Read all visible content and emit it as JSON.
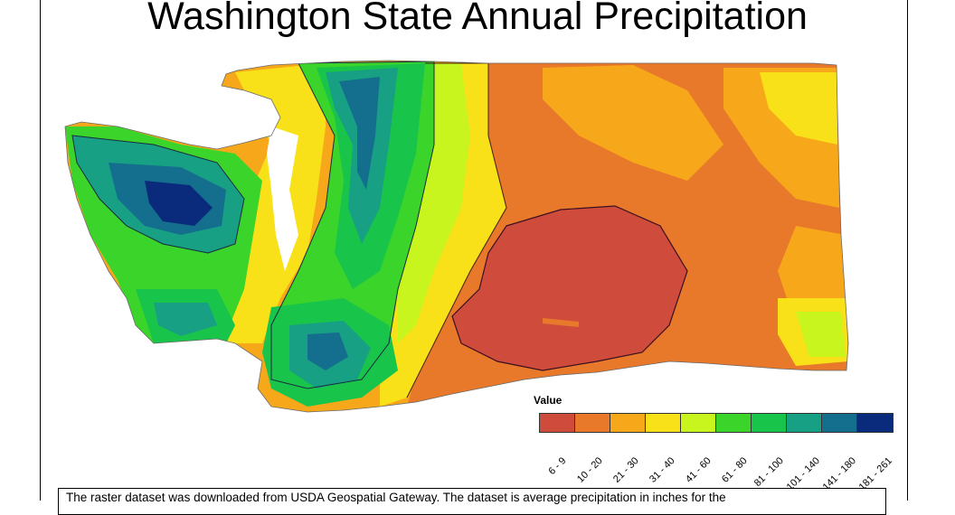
{
  "title": "Washington State Annual Precipitation",
  "legend": {
    "title": "Value",
    "classes": [
      {
        "label": "6 - 9",
        "color": "#cf4c3c"
      },
      {
        "label": "10 - 20",
        "color": "#e8782a"
      },
      {
        "label": "21 - 30",
        "color": "#f6a81a"
      },
      {
        "label": "31 - 40",
        "color": "#f9e11a"
      },
      {
        "label": "41 - 60",
        "color": "#c8f51e"
      },
      {
        "label": "61 - 80",
        "color": "#3ad42a"
      },
      {
        "label": "81 - 100",
        "color": "#19c44a"
      },
      {
        "label": "101 - 140",
        "color": "#17a084"
      },
      {
        "label": "141 - 180",
        "color": "#146e8e"
      },
      {
        "label": "181 - 261",
        "color": "#0a2a7c"
      }
    ]
  },
  "caption": "The raster dataset was downloaded from USDA Geospatial Gateway. The dataset is average precipitation in inches for the"
}
